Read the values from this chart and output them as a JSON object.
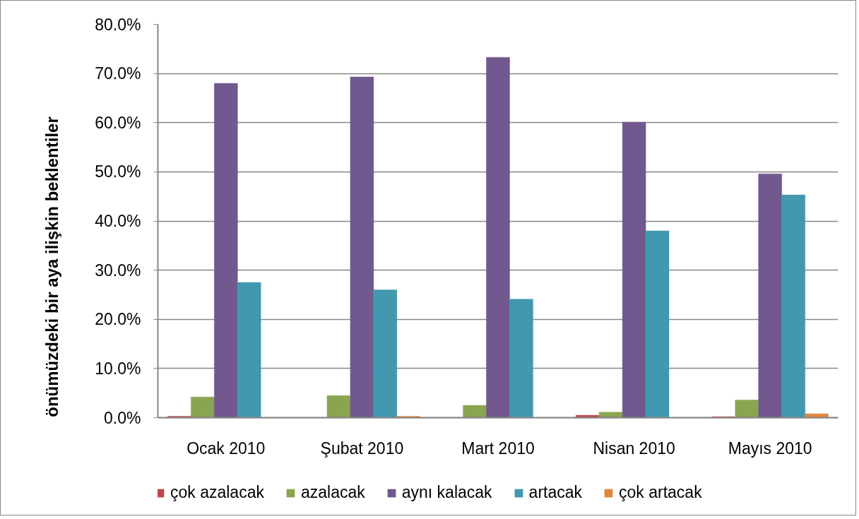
{
  "chart_data": {
    "type": "bar",
    "ylabel": "önümüzdeki bir aya ilişkin beklentiler",
    "categories": [
      "Ocak 2010",
      "Şubat 2010",
      "Mart 2010",
      "Nisan 2010",
      "Mayıs 2010"
    ],
    "series": [
      {
        "name": "çok azalacak",
        "color": "#be4b48",
        "values": [
          0.3,
          null,
          null,
          0.5,
          0.2
        ]
      },
      {
        "name": "azalacak",
        "color": "#8aa54f",
        "values": [
          4.2,
          4.5,
          2.5,
          1.1,
          3.6
        ]
      },
      {
        "name": "aynı kalacak",
        "color": "#71588f",
        "values": [
          68.0,
          69.3,
          73.3,
          60.1,
          49.6
        ]
      },
      {
        "name": "artacak",
        "color": "#4298af",
        "values": [
          27.5,
          26.0,
          24.1,
          38.0,
          45.3
        ]
      },
      {
        "name": "çok artacak",
        "color": "#e0883f",
        "values": [
          null,
          0.3,
          null,
          null,
          0.8
        ]
      }
    ],
    "ylim": [
      0,
      80
    ],
    "yticks": [
      {
        "value": 0,
        "label": "0.0%"
      },
      {
        "value": 10,
        "label": "10.0%"
      },
      {
        "value": 20,
        "label": "20.0%"
      },
      {
        "value": 30,
        "label": "30.0%"
      },
      {
        "value": 40,
        "label": "40.0%"
      },
      {
        "value": 50,
        "label": "50.0%"
      },
      {
        "value": 60,
        "label": "60.0%"
      },
      {
        "value": 70,
        "label": "70.0%"
      },
      {
        "value": 80,
        "label": "80.0%"
      }
    ],
    "grid": "y",
    "legend": "bottom"
  }
}
